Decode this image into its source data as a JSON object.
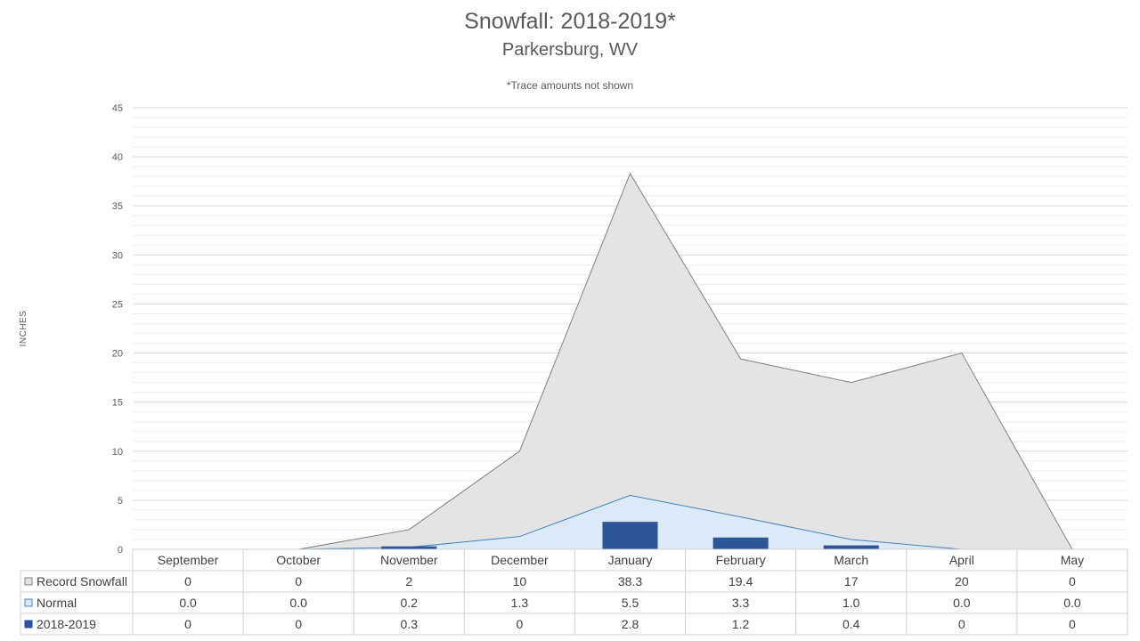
{
  "title": "Snowfall: 2018-2019*",
  "subtitle": "Parkersburg, WV",
  "note": "*Trace amounts not shown",
  "colors": {
    "record": "#e4e4e4",
    "record_line": "#7f7f7f",
    "normal": "#dce9f6",
    "normal_line": "#3f85c6",
    "season": "#2e5597",
    "grid": "#d9d9d9",
    "minor_grid": "#eeeeee",
    "table_border": "#d0d0d0"
  },
  "chart_data": {
    "type": "area",
    "title": "Snowfall: 2018-2019*",
    "subtitle": "Parkersburg, WV",
    "ylabel": "INCHES",
    "ylim": [
      0,
      45
    ],
    "yticks": [
      0,
      5,
      10,
      15,
      20,
      25,
      30,
      35,
      40,
      45
    ],
    "grid": true,
    "legend": "data-table",
    "categories": [
      "September",
      "October",
      "November",
      "December",
      "January",
      "February",
      "March",
      "April",
      "May"
    ],
    "series": [
      {
        "name": "Record Snowfall",
        "kind": "area",
        "values": [
          0,
          0,
          2,
          10,
          38.3,
          19.4,
          17,
          20,
          0
        ],
        "labels": [
          "0",
          "0",
          "2",
          "10",
          "38.3",
          "19.4",
          "17",
          "20",
          "0"
        ]
      },
      {
        "name": "Normal",
        "kind": "area",
        "values": [
          0.0,
          0.0,
          0.2,
          1.3,
          5.5,
          3.3,
          1.0,
          0.0,
          0.0
        ],
        "labels": [
          "0.0",
          "0.0",
          "0.2",
          "1.3",
          "5.5",
          "3.3",
          "1.0",
          "0.0",
          "0.0"
        ]
      },
      {
        "name": "2018-2019",
        "kind": "bar",
        "values": [
          0,
          0,
          0.3,
          0,
          2.8,
          1.2,
          0.4,
          0,
          0
        ],
        "labels": [
          "0",
          "0",
          "0.3",
          "0",
          "2.8",
          "1.2",
          "0.4",
          "0",
          "0"
        ]
      }
    ]
  }
}
